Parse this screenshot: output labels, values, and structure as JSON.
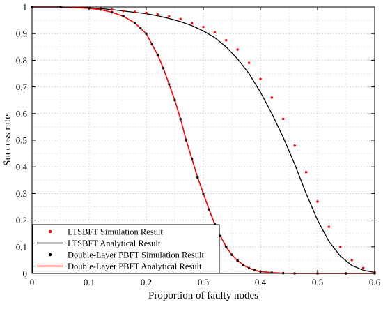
{
  "chart_data": {
    "type": "line",
    "xlabel": "Proportion of faulty nodes",
    "ylabel": "Success rate",
    "xlim": [
      0,
      0.6
    ],
    "ylim": [
      0,
      1
    ],
    "xticks": [
      0,
      0.1,
      0.2,
      0.3,
      0.4,
      0.5,
      0.6
    ],
    "yticks": [
      0,
      0.1,
      0.2,
      0.3,
      0.4,
      0.5,
      0.6,
      0.7,
      0.8,
      0.9,
      1
    ],
    "xtick_labels": [
      "0",
      "0.1",
      "0.2",
      "0.3",
      "0.4",
      "0.5",
      "0.6"
    ],
    "ytick_labels": [
      "0",
      "0.1",
      "0.2",
      "0.3",
      "0.4",
      "0.5",
      "0.6",
      "0.7",
      "0.8",
      "0.9",
      "1"
    ],
    "grid": true,
    "legend_position": "bottom-left",
    "series": [
      {
        "name": "LTSBFT Simulation Result",
        "style": "dotted-markers",
        "color": "#ff0000",
        "x": [
          0,
          0.05,
          0.1,
          0.12,
          0.14,
          0.16,
          0.18,
          0.2,
          0.22,
          0.24,
          0.26,
          0.28,
          0.3,
          0.32,
          0.34,
          0.36,
          0.38,
          0.4,
          0.42,
          0.44,
          0.46,
          0.48,
          0.5,
          0.52,
          0.54,
          0.56,
          0.58,
          0.6
        ],
        "y": [
          1.0,
          1.0,
          0.997,
          0.995,
          0.99,
          0.985,
          0.982,
          0.978,
          0.972,
          0.965,
          0.955,
          0.94,
          0.925,
          0.905,
          0.875,
          0.84,
          0.79,
          0.73,
          0.66,
          0.58,
          0.48,
          0.38,
          0.27,
          0.175,
          0.1,
          0.05,
          0.02,
          0.005
        ]
      },
      {
        "name": "LTSBFT Analytical Result",
        "style": "line",
        "color": "#000000",
        "x": [
          0,
          0.05,
          0.1,
          0.12,
          0.14,
          0.16,
          0.18,
          0.2,
          0.22,
          0.24,
          0.26,
          0.28,
          0.3,
          0.32,
          0.34,
          0.36,
          0.38,
          0.4,
          0.42,
          0.44,
          0.46,
          0.48,
          0.5,
          0.52,
          0.54,
          0.56,
          0.58,
          0.6
        ],
        "y": [
          1.0,
          1.0,
          0.997,
          0.994,
          0.99,
          0.985,
          0.98,
          0.975,
          0.967,
          0.957,
          0.945,
          0.93,
          0.91,
          0.885,
          0.85,
          0.805,
          0.75,
          0.68,
          0.6,
          0.51,
          0.41,
          0.3,
          0.2,
          0.12,
          0.065,
          0.03,
          0.012,
          0.004
        ]
      },
      {
        "name": "Double-Layer PBFT Simulation Result",
        "style": "dotted-markers",
        "color": "#000000",
        "x": [
          0,
          0.05,
          0.1,
          0.12,
          0.14,
          0.16,
          0.18,
          0.19,
          0.2,
          0.21,
          0.22,
          0.23,
          0.24,
          0.25,
          0.26,
          0.27,
          0.28,
          0.29,
          0.3,
          0.31,
          0.32,
          0.33,
          0.34,
          0.35,
          0.36,
          0.37,
          0.38,
          0.39,
          0.4,
          0.42,
          0.44,
          0.46,
          0.5,
          0.55,
          0.6
        ],
        "y": [
          1.0,
          1.0,
          0.995,
          0.99,
          0.98,
          0.965,
          0.94,
          0.92,
          0.9,
          0.86,
          0.82,
          0.77,
          0.71,
          0.65,
          0.58,
          0.5,
          0.43,
          0.36,
          0.3,
          0.24,
          0.185,
          0.14,
          0.1,
          0.07,
          0.048,
          0.032,
          0.02,
          0.012,
          0.007,
          0.003,
          0.001,
          0.0,
          0.0,
          0.0,
          0.0
        ]
      },
      {
        "name": "Double-Layer PBFT Analytical Result",
        "style": "line",
        "color": "#ff0000",
        "x": [
          0,
          0.05,
          0.1,
          0.12,
          0.14,
          0.16,
          0.18,
          0.19,
          0.2,
          0.21,
          0.22,
          0.23,
          0.24,
          0.25,
          0.26,
          0.27,
          0.28,
          0.29,
          0.3,
          0.31,
          0.32,
          0.33,
          0.34,
          0.35,
          0.36,
          0.37,
          0.38,
          0.39,
          0.4,
          0.42,
          0.44,
          0.46,
          0.5,
          0.55,
          0.6
        ],
        "y": [
          1.0,
          1.0,
          0.995,
          0.99,
          0.98,
          0.965,
          0.94,
          0.92,
          0.9,
          0.86,
          0.82,
          0.77,
          0.71,
          0.65,
          0.58,
          0.5,
          0.43,
          0.36,
          0.3,
          0.24,
          0.185,
          0.14,
          0.1,
          0.07,
          0.048,
          0.032,
          0.02,
          0.012,
          0.007,
          0.003,
          0.001,
          0.0,
          0.0,
          0.0,
          0.0
        ]
      }
    ]
  }
}
